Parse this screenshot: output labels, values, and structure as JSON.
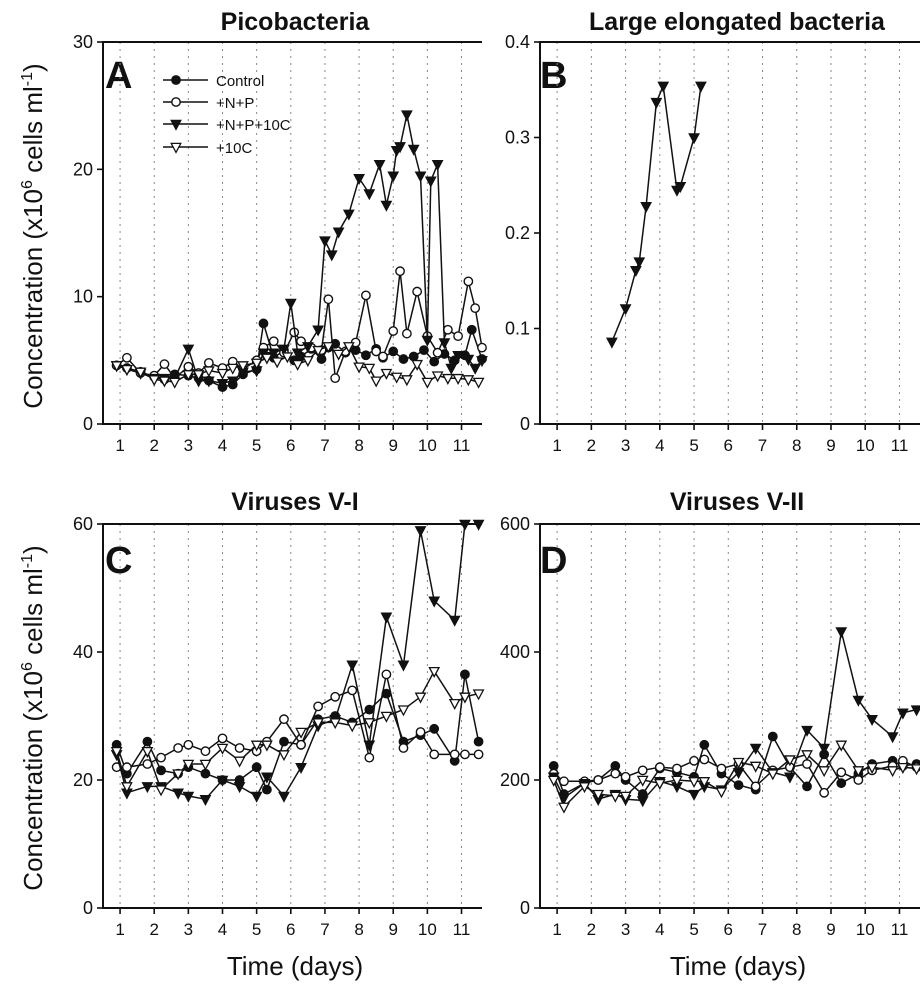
{
  "figure": {
    "ylabel": "Concentration (x10",
    "ylabel_sup": "6",
    "ylabel_tail": " cells ml",
    "ylabel_sup2": "-1",
    "ylabel_end": ")",
    "xlabel": "Time (days)"
  },
  "legend": [
    "Control",
    "+N+P",
    "+N+P+10C",
    "+10C"
  ],
  "chart_data": [
    {
      "panel": "A",
      "type": "line",
      "title": "Picobacteria",
      "xlim": [
        0.5,
        11.6
      ],
      "ylim": [
        0,
        30
      ],
      "xticks": [
        1,
        2,
        3,
        4,
        5,
        6,
        7,
        8,
        9,
        10,
        11
      ],
      "yticks": [
        0,
        10,
        20,
        30
      ],
      "grid": "vertical dotted",
      "legend_position": "top-left",
      "series": [
        {
          "name": "Control",
          "marker": "filled-circle",
          "x": [
            0.9,
            1.2,
            1.6,
            2.0,
            2.3,
            2.6,
            3.0,
            3.3,
            3.6,
            4.0,
            4.3,
            4.6,
            5.0,
            5.2,
            5.5,
            5.8,
            6.1,
            6.3,
            6.6,
            6.9,
            7.1,
            7.3,
            7.6,
            7.9,
            8.2,
            8.5,
            8.7,
            9.0,
            9.3,
            9.6,
            9.9,
            10.2,
            10.5,
            10.8,
            11.1,
            11.3,
            11.6
          ],
          "y": [
            4.6,
            4.4,
            4.1,
            3.7,
            3.5,
            3.9,
            3.8,
            3.6,
            3.4,
            2.9,
            3.1,
            3.9,
            4.3,
            7.9,
            5.2,
            5.8,
            5.0,
            5.3,
            5.9,
            5.1,
            6.0,
            6.3,
            5.6,
            5.8,
            5.4,
            5.9,
            5.2,
            5.7,
            5.1,
            5.3,
            5.8,
            4.9,
            5.5,
            5.0,
            5.4,
            7.4,
            5.1
          ]
        },
        {
          "name": "+N+P",
          "marker": "open-circle",
          "x": [
            0.9,
            1.2,
            1.6,
            2.0,
            2.3,
            2.6,
            3.0,
            3.3,
            3.6,
            4.0,
            4.3,
            4.6,
            5.0,
            5.2,
            5.5,
            5.8,
            6.1,
            6.3,
            6.6,
            6.9,
            7.1,
            7.3,
            7.6,
            7.9,
            8.2,
            8.5,
            8.7,
            9.0,
            9.2,
            9.4,
            9.7,
            10.0,
            10.3,
            10.6,
            10.9,
            11.2,
            11.4,
            11.6
          ],
          "y": [
            4.6,
            5.2,
            4.0,
            3.8,
            4.7,
            3.6,
            4.5,
            4.0,
            4.8,
            4.4,
            4.9,
            4.3,
            5.0,
            6.0,
            6.5,
            5.6,
            7.2,
            6.5,
            6.0,
            5.8,
            9.8,
            3.6,
            5.7,
            6.4,
            10.1,
            5.7,
            5.3,
            7.3,
            12.0,
            7.1,
            10.4,
            6.9,
            5.6,
            7.4,
            6.9,
            11.2,
            9.1,
            6.0
          ]
        },
        {
          "name": "+N+P+10C",
          "marker": "filled-triangle-down",
          "x": [
            0.9,
            1.2,
            1.6,
            2.0,
            2.3,
            2.6,
            3.0,
            3.3,
            3.6,
            4.0,
            4.3,
            4.6,
            5.0,
            5.2,
            5.5,
            5.8,
            6.0,
            6.2,
            6.5,
            6.8,
            7.0,
            7.2,
            7.4,
            7.7,
            8.0,
            8.3,
            8.6,
            8.8,
            9.0,
            9.1,
            9.2,
            9.4,
            9.6,
            9.8,
            10.0,
            10.1,
            10.3,
            10.5,
            10.7,
            10.9,
            11.2,
            11.4,
            11.6
          ],
          "y": [
            4.6,
            4.3,
            4.0,
            3.6,
            3.6,
            3.6,
            5.9,
            3.4,
            3.4,
            3.2,
            3.4,
            4.1,
            4.2,
            5.6,
            5.6,
            5.9,
            9.5,
            5.6,
            6.1,
            7.4,
            14.4,
            13.3,
            15.1,
            16.5,
            19.3,
            18.1,
            20.4,
            17.2,
            19.5,
            21.5,
            21.8,
            24.3,
            21.6,
            19.5,
            6.6,
            19.1,
            20.4,
            6.4,
            4.4,
            5.4,
            5.1,
            4.4,
            5.0
          ]
        },
        {
          "name": "+10C",
          "marker": "open-triangle-down",
          "x": [
            0.9,
            1.2,
            1.6,
            2.0,
            2.3,
            2.6,
            3.0,
            3.3,
            3.6,
            4.0,
            4.3,
            4.6,
            5.0,
            5.3,
            5.6,
            5.9,
            6.2,
            6.5,
            6.8,
            7.1,
            7.4,
            7.7,
            8.0,
            8.3,
            8.5,
            8.8,
            9.1,
            9.4,
            9.7,
            10.0,
            10.3,
            10.6,
            10.9,
            11.2,
            11.5
          ],
          "y": [
            4.6,
            4.3,
            4.1,
            3.5,
            3.4,
            3.3,
            3.9,
            3.9,
            4.2,
            4.0,
            4.4,
            4.6,
            4.8,
            5.2,
            4.9,
            5.3,
            4.7,
            5.0,
            5.8,
            6.1,
            5.5,
            6.1,
            4.5,
            4.4,
            3.4,
            4.0,
            3.7,
            3.5,
            4.7,
            3.3,
            3.8,
            3.6,
            3.6,
            3.5,
            3.3
          ]
        }
      ]
    },
    {
      "panel": "B",
      "type": "line",
      "title": "Large elongated bacteria",
      "xlim": [
        0.5,
        11.6
      ],
      "ylim": [
        0,
        0.4
      ],
      "xticks": [
        1,
        2,
        3,
        4,
        5,
        6,
        7,
        8,
        9,
        10,
        11
      ],
      "yticks": [
        0,
        0.1,
        0.2,
        0.3,
        0.4
      ],
      "grid": "vertical dotted",
      "series": [
        {
          "name": "+N+P+10C",
          "marker": "filled-triangle-down",
          "x": [
            2.6,
            3.0,
            3.3,
            3.4,
            3.6,
            3.9,
            4.1,
            4.5,
            4.6,
            5.0,
            5.2
          ],
          "y": [
            0.086,
            0.121,
            0.161,
            0.17,
            0.228,
            0.337,
            0.354,
            0.245,
            0.249,
            0.3,
            0.354
          ]
        }
      ]
    },
    {
      "panel": "C",
      "type": "line",
      "title": "Viruses V-I",
      "xlim": [
        0.5,
        11.6
      ],
      "ylim": [
        0,
        60
      ],
      "xticks": [
        1,
        2,
        3,
        4,
        5,
        6,
        7,
        8,
        9,
        10,
        11
      ],
      "yticks": [
        0,
        20,
        40,
        60
      ],
      "grid": "vertical dotted",
      "series": [
        {
          "name": "Control",
          "marker": "filled-circle",
          "x": [
            0.9,
            1.2,
            1.8,
            2.2,
            2.7,
            3.0,
            3.5,
            4.0,
            4.5,
            5.0,
            5.3,
            5.8,
            6.3,
            6.8,
            7.3,
            7.8,
            8.3,
            8.8,
            9.3,
            9.8,
            10.2,
            10.8,
            11.1,
            11.5
          ],
          "y": [
            25.5,
            21.0,
            26.0,
            21.5,
            21.0,
            22.0,
            21.0,
            20.0,
            20.0,
            22.0,
            18.5,
            26.0,
            25.5,
            29.5,
            30.0,
            29.0,
            31.0,
            33.5,
            26.0,
            27.0,
            28.0,
            23.0,
            36.5,
            26.0
          ]
        },
        {
          "name": "+N+P",
          "marker": "open-circle",
          "x": [
            0.9,
            1.2,
            1.8,
            2.2,
            2.7,
            3.0,
            3.5,
            4.0,
            4.5,
            5.0,
            5.3,
            5.8,
            6.3,
            6.8,
            7.3,
            7.8,
            8.3,
            8.8,
            9.3,
            9.8,
            10.2,
            10.8,
            11.1,
            11.5
          ],
          "y": [
            22.0,
            22.0,
            22.5,
            23.5,
            25.0,
            25.5,
            24.5,
            26.5,
            25.0,
            24.5,
            26.0,
            29.5,
            25.5,
            31.5,
            33.0,
            34.0,
            23.5,
            36.5,
            25.0,
            27.5,
            24.0,
            24.0,
            24.0,
            24.0
          ]
        },
        {
          "name": "+N+P+10C",
          "marker": "filled-triangle-down",
          "x": [
            0.9,
            1.2,
            1.8,
            2.2,
            2.7,
            3.0,
            3.5,
            4.0,
            4.5,
            5.0,
            5.3,
            5.8,
            6.3,
            6.8,
            7.3,
            7.8,
            8.3,
            8.8,
            9.3,
            9.8,
            10.2,
            10.8,
            11.1,
            11.5
          ],
          "y": [
            24.0,
            18.0,
            19.0,
            19.0,
            18.0,
            17.5,
            17.0,
            20.0,
            19.0,
            17.5,
            20.5,
            17.5,
            22.0,
            28.5,
            29.5,
            38.0,
            25.5,
            45.5,
            38.0,
            59.0,
            48.0,
            45.0,
            60.0,
            60.0
          ]
        },
        {
          "name": "+10C",
          "marker": "open-triangle-down",
          "x": [
            0.9,
            1.2,
            1.8,
            2.2,
            2.7,
            3.0,
            3.5,
            4.0,
            4.5,
            5.0,
            5.3,
            5.8,
            6.3,
            6.8,
            7.3,
            7.8,
            8.3,
            8.8,
            9.3,
            9.8,
            10.2,
            10.8,
            11.1,
            11.5
          ],
          "y": [
            24.5,
            19.0,
            24.5,
            18.5,
            21.0,
            22.5,
            22.5,
            25.0,
            23.0,
            25.5,
            25.5,
            24.0,
            27.5,
            29.0,
            29.0,
            28.5,
            29.0,
            30.0,
            31.0,
            33.0,
            37.0,
            32.0,
            33.0,
            33.5
          ]
        }
      ]
    },
    {
      "panel": "D",
      "type": "line",
      "title": "Viruses V-II",
      "xlim": [
        0.5,
        11.6
      ],
      "ylim": [
        0,
        600
      ],
      "xticks": [
        1,
        2,
        3,
        4,
        5,
        6,
        7,
        8,
        9,
        10,
        11
      ],
      "yticks": [
        0,
        200,
        400,
        600
      ],
      "grid": "vertical dotted",
      "series": [
        {
          "name": "Control",
          "marker": "filled-circle",
          "x": [
            0.9,
            1.2,
            1.8,
            2.2,
            2.7,
            3.0,
            3.5,
            4.0,
            4.5,
            5.0,
            5.3,
            5.8,
            6.3,
            6.8,
            7.3,
            7.8,
            8.3,
            8.8,
            9.3,
            9.8,
            10.2,
            10.8,
            11.1,
            11.5
          ],
          "y": [
            222,
            178,
            195,
            200,
            222,
            200,
            178,
            218,
            212,
            205,
            255,
            210,
            192,
            185,
            268,
            220,
            190,
            240,
            195,
            210,
            225,
            230,
            222,
            225
          ]
        },
        {
          "name": "+N+P",
          "marker": "open-circle",
          "x": [
            0.9,
            1.2,
            1.8,
            2.2,
            2.7,
            3.0,
            3.5,
            4.0,
            4.5,
            5.0,
            5.3,
            5.8,
            6.3,
            6.8,
            7.3,
            7.8,
            8.3,
            8.8,
            9.3,
            9.8,
            10.2,
            10.8,
            11.1,
            11.5
          ],
          "y": [
            210,
            198,
            198,
            200,
            210,
            205,
            215,
            220,
            218,
            230,
            232,
            218,
            225,
            190,
            215,
            220,
            225,
            180,
            212,
            200,
            215,
            222,
            230,
            220
          ]
        },
        {
          "name": "+N+P+10C",
          "marker": "filled-triangle-down",
          "x": [
            0.9,
            1.2,
            1.8,
            2.2,
            2.7,
            3.0,
            3.5,
            4.0,
            4.5,
            5.0,
            5.3,
            5.8,
            6.3,
            6.8,
            7.3,
            7.8,
            8.3,
            8.8,
            9.3,
            9.8,
            10.2,
            10.8,
            11.1,
            11.5
          ],
          "y": [
            205,
            172,
            195,
            170,
            178,
            170,
            168,
            198,
            190,
            178,
            190,
            185,
            212,
            250,
            212,
            205,
            278,
            250,
            432,
            325,
            295,
            268,
            305,
            310
          ]
        },
        {
          "name": "+10C",
          "marker": "open-triangle-down",
          "x": [
            0.9,
            1.2,
            1.8,
            2.2,
            2.7,
            3.0,
            3.5,
            4.0,
            4.5,
            5.0,
            5.3,
            5.8,
            6.3,
            6.8,
            7.3,
            7.8,
            8.3,
            8.8,
            9.3,
            9.8,
            10.2,
            10.8,
            11.1,
            11.5
          ],
          "y": [
            200,
            158,
            190,
            178,
            175,
            175,
            200,
            195,
            200,
            198,
            198,
            182,
            228,
            222,
            210,
            232,
            240,
            215,
            255,
            215,
            220,
            215,
            220,
            218
          ]
        }
      ]
    }
  ]
}
